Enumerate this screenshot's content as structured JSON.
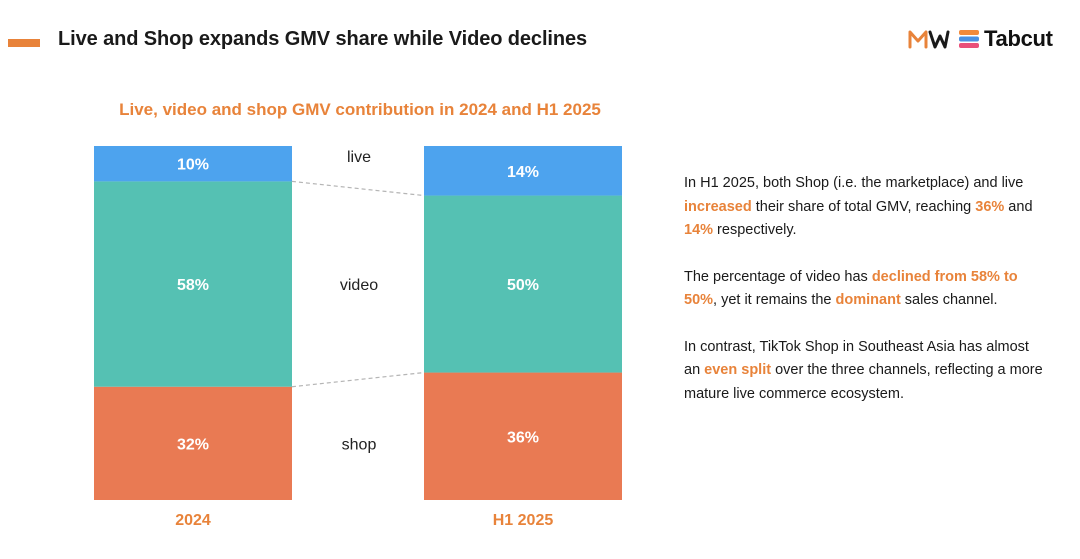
{
  "page": {
    "title": "Live and Shop expands GMV share while Video declines",
    "logo_text": "Tabcut"
  },
  "colors": {
    "accent": "#E8833A",
    "live": "#4DA3EE",
    "video": "#55C1B3",
    "shop": "#E97A53",
    "connector": "#b5b5b5"
  },
  "chart_data": {
    "type": "bar",
    "stacked": true,
    "title": "Live, video and shop GMV contribution in 2024 and H1 2025",
    "categories": [
      "2024",
      "H1 2025"
    ],
    "series": [
      {
        "name": "shop",
        "values": [
          32,
          36
        ],
        "labels": [
          "32%",
          "36%"
        ]
      },
      {
        "name": "video",
        "values": [
          58,
          50
        ],
        "labels": [
          "58%",
          "50%"
        ]
      },
      {
        "name": "live",
        "values": [
          10,
          14
        ],
        "labels": [
          "10%",
          "14%"
        ]
      }
    ],
    "ylim": [
      0,
      100
    ],
    "unit": "%"
  },
  "notes": [
    [
      {
        "t": "In H1 2025, both Shop (i.e. the marketplace) and live "
      },
      {
        "t": "increased",
        "hl": true
      },
      {
        "t": " their share of total GMV, reaching "
      },
      {
        "t": "36%",
        "hl": true
      },
      {
        "t": " and "
      },
      {
        "t": "14%",
        "hl": true
      },
      {
        "t": " respectively."
      }
    ],
    [
      {
        "t": "The percentage of video has "
      },
      {
        "t": "declined from 58% to 50%",
        "hl": true
      },
      {
        "t": ", yet it remains the "
      },
      {
        "t": "dominant",
        "hl": true
      },
      {
        "t": " sales channel."
      }
    ],
    [
      {
        "t": "In contrast, TikTok Shop in Southeast Asia has almost an "
      },
      {
        "t": "even split",
        "hl": true
      },
      {
        "t": " over the three channels, reflecting a more mature live commerce ecosystem."
      }
    ]
  ]
}
